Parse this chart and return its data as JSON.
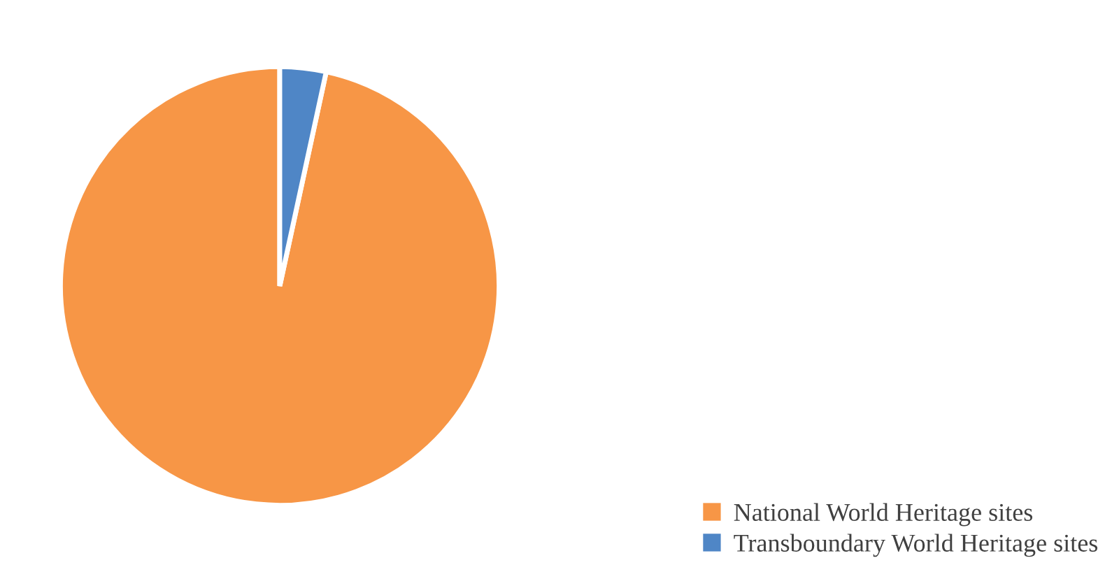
{
  "chart_data": {
    "type": "pie",
    "categories": [
      "National World Heritage sites",
      "Transboundary World Heritage sites"
    ],
    "values": [
      96.6,
      3.4
    ],
    "colors": [
      "#f79646",
      "#4f86c6"
    ],
    "legend": "bottom right"
  }
}
